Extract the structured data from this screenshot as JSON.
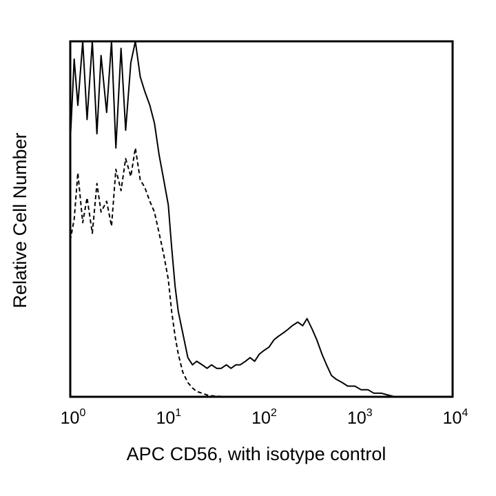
{
  "chart_data": {
    "type": "line",
    "xlabel": "APC CD56, with isotype control",
    "ylabel": "Relative Cell Number",
    "x_scale": "log",
    "xlim": [
      1,
      10000
    ],
    "ylim": [
      0,
      100
    ],
    "grid": false,
    "legend": "none",
    "x_ticks": [
      {
        "base": "10",
        "exp": "0",
        "value": 1
      },
      {
        "base": "10",
        "exp": "1",
        "value": 10
      },
      {
        "base": "10",
        "exp": "2",
        "value": 100
      },
      {
        "base": "10",
        "exp": "3",
        "value": 1000
      },
      {
        "base": "10",
        "exp": "4",
        "value": 10000
      }
    ],
    "series": [
      {
        "line_style": "solid",
        "color": "#000000",
        "x": [
          1.0,
          1.1,
          1.2,
          1.35,
          1.5,
          1.7,
          1.9,
          2.1,
          2.4,
          2.7,
          3.0,
          3.4,
          3.8,
          4.3,
          4.8,
          5.4,
          6.0,
          6.8,
          7.6,
          8.5,
          9.5,
          10.6,
          11.5,
          12.5,
          13.5,
          15,
          17,
          19,
          21,
          24,
          27,
          30,
          34,
          38,
          43,
          48,
          54,
          60,
          68,
          76,
          85,
          95,
          106,
          120,
          135,
          150,
          170,
          190,
          210,
          240,
          270,
          300,
          340,
          380,
          430,
          480,
          540,
          600,
          700,
          800,
          950,
          1100,
          1300,
          1500,
          1800,
          2100,
          2500
        ],
        "y": [
          72,
          95,
          82,
          100,
          78,
          100,
          74,
          96,
          80,
          100,
          70,
          98,
          75,
          94,
          100,
          90,
          86,
          82,
          77,
          68,
          61,
          54,
          42,
          31,
          24,
          18,
          11,
          9,
          10,
          9,
          8,
          9,
          8,
          8,
          9,
          8,
          9,
          9,
          10,
          11,
          10,
          12,
          13,
          14,
          16,
          17,
          18,
          19,
          20,
          21,
          20,
          22,
          19,
          16,
          12,
          9,
          6,
          5,
          4,
          3,
          3,
          2,
          2,
          1,
          1,
          0.5,
          0
        ]
      },
      {
        "line_style": "dashed",
        "color": "#000000",
        "x": [
          1.0,
          1.1,
          1.2,
          1.35,
          1.5,
          1.7,
          1.9,
          2.1,
          2.4,
          2.7,
          3.0,
          3.4,
          3.8,
          4.3,
          4.8,
          5.4,
          6.0,
          6.8,
          7.6,
          8.5,
          9.5,
          10.6,
          11.5,
          12.5,
          13.5,
          15,
          17,
          19,
          21,
          24,
          27,
          30,
          34,
          38,
          43
        ],
        "y": [
          44,
          50,
          63,
          49,
          56,
          46,
          60,
          52,
          55,
          48,
          64,
          58,
          67,
          62,
          70,
          61,
          59,
          55,
          52,
          46,
          40,
          33,
          24,
          17,
          12,
          7,
          4,
          2.5,
          1.5,
          1,
          0.5,
          0.3,
          0.2,
          0.1,
          0
        ]
      }
    ]
  }
}
